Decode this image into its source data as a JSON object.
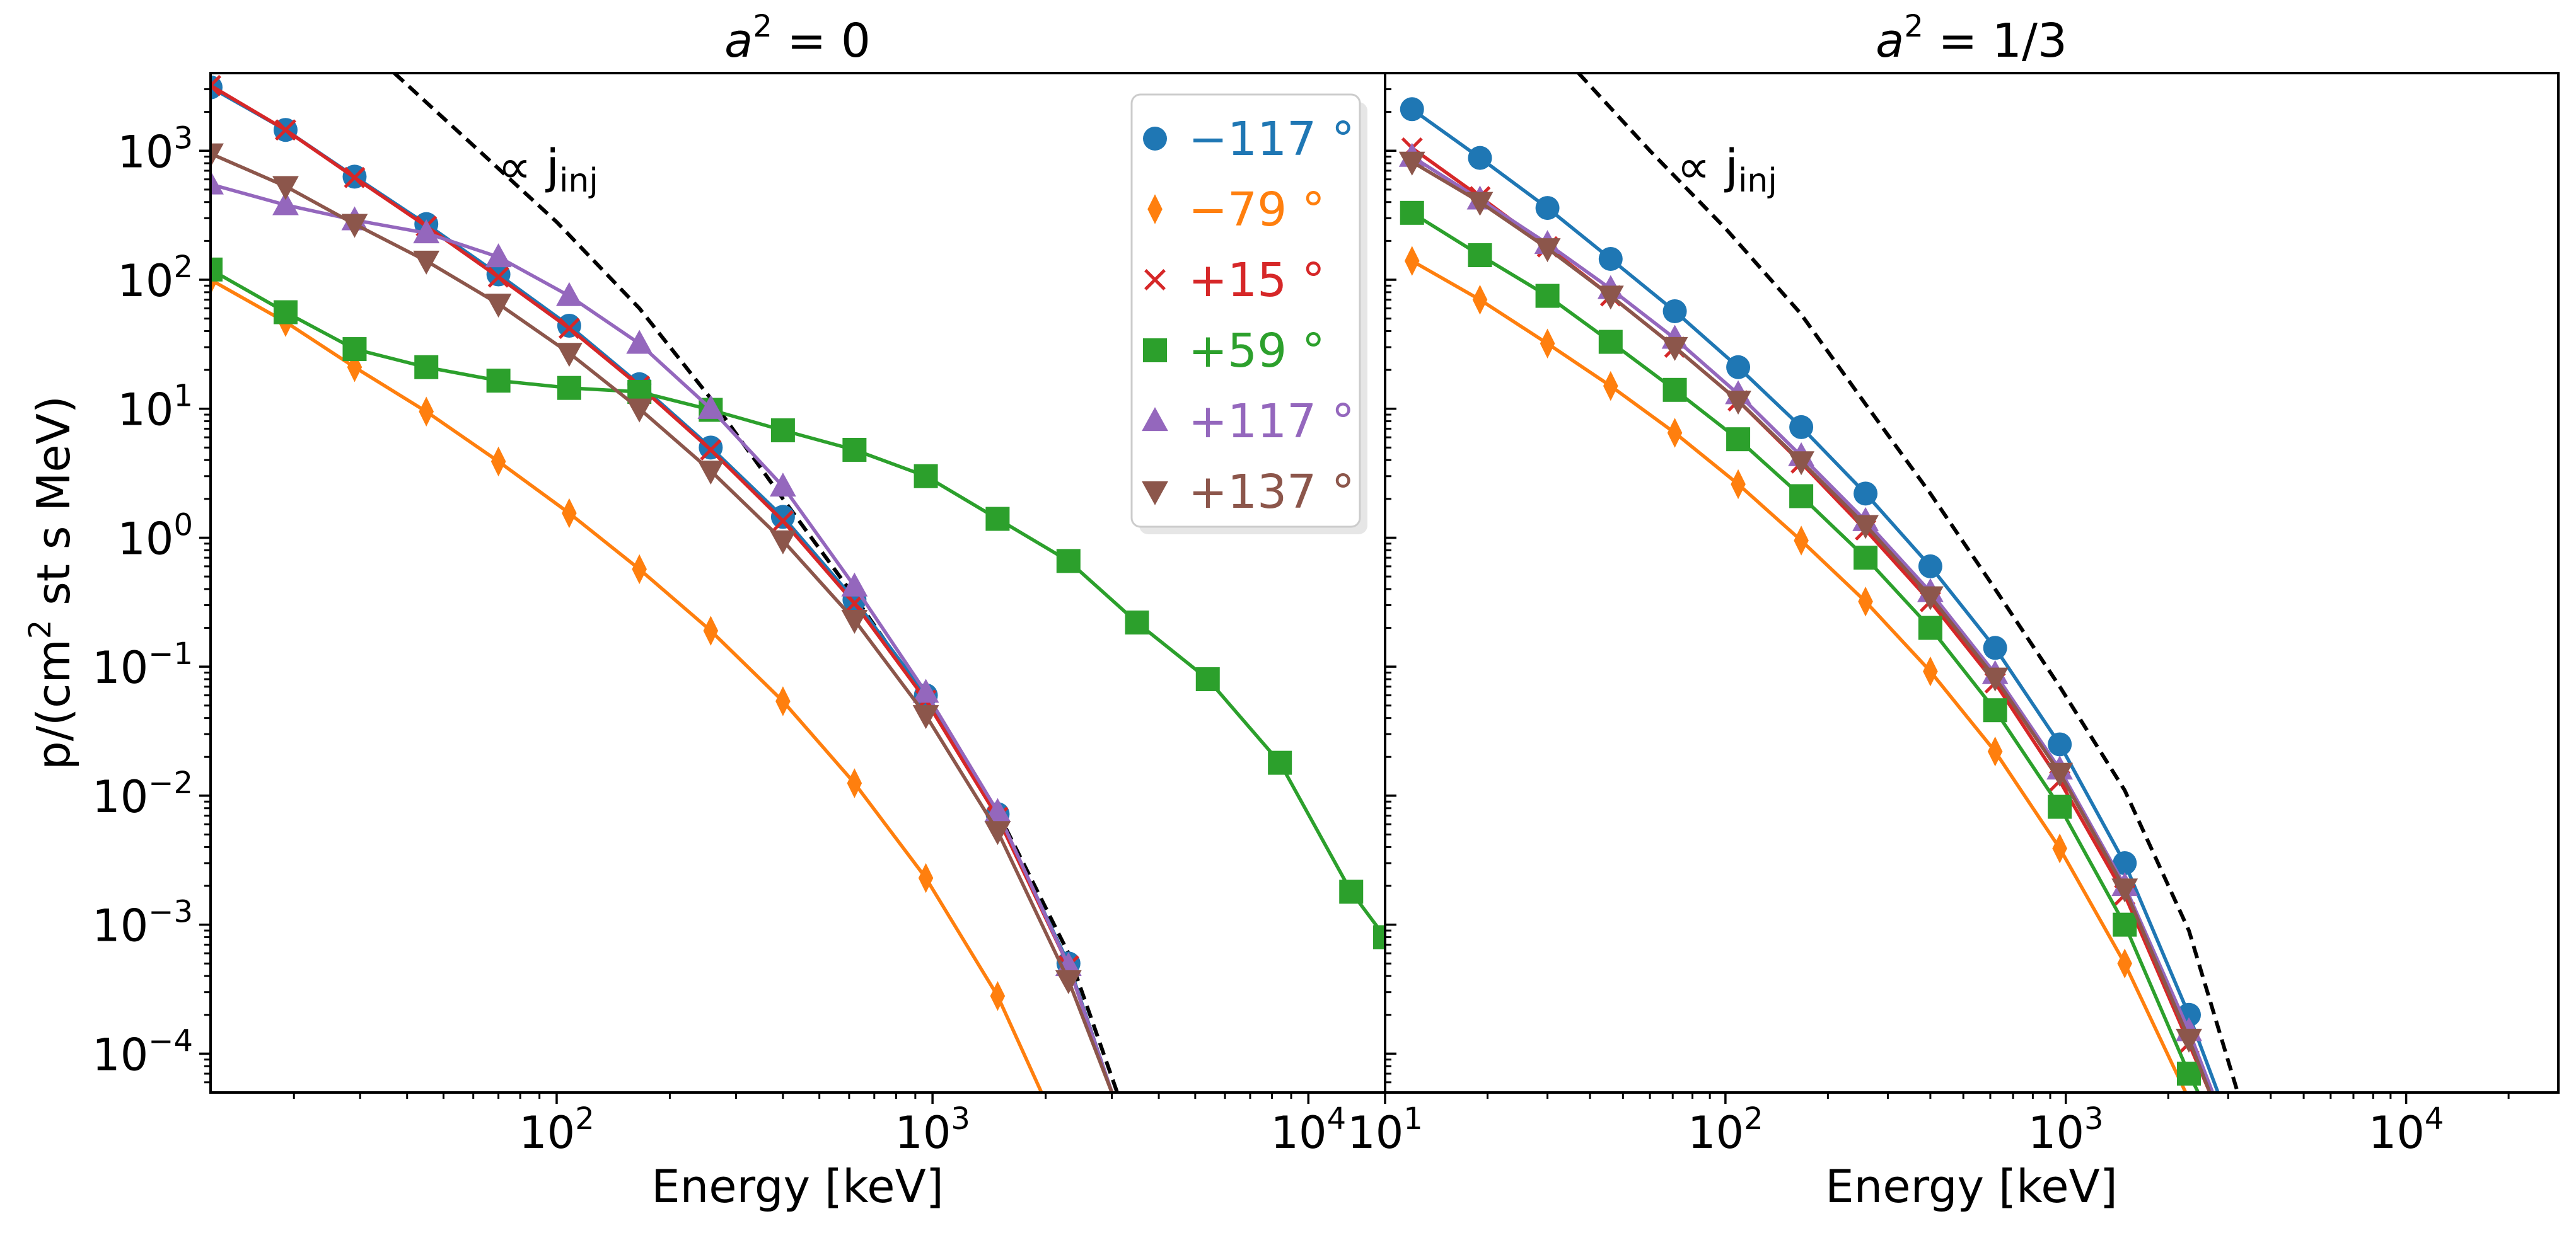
{
  "figure": {
    "ylabel_main": "p/(cm",
    "ylabel_sup": "2",
    "ylabel_tail": " st s MeV)",
    "xlabel": "Energy [keV]"
  },
  "panels": [
    {
      "title_base": "a",
      "title_sup": "2",
      "title_rest": " = 0",
      "annotation_main": "∝ j",
      "annotation_sub": "inj"
    },
    {
      "title_base": "a",
      "title_sup": "2",
      "title_rest": " = 1/3",
      "annotation_main": "∝ j",
      "annotation_sub": "inj"
    }
  ],
  "legend": [
    {
      "label": "−117 °",
      "color": "#1f77b4",
      "marker": "circle"
    },
    {
      "label": "−79 °",
      "color": "#ff7f0e",
      "marker": "thin-diamond"
    },
    {
      "label": "+15 °",
      "color": "#d62728",
      "marker": "x"
    },
    {
      "label": "+59 °",
      "color": "#2ca02c",
      "marker": "square"
    },
    {
      "label": "+117 °",
      "color": "#9467bd",
      "marker": "triangle-up"
    },
    {
      "label": "+137 °",
      "color": "#8c564b",
      "marker": "triangle-down"
    }
  ],
  "chart_data": [
    {
      "type": "line",
      "title": "a^2 = 0",
      "xlabel": "Energy [keV]",
      "ylabel": "p/(cm^2 st s MeV)",
      "xscale": "log",
      "yscale": "log",
      "xlim": [
        12,
        16000
      ],
      "ylim": [
        5e-05,
        4000
      ],
      "x_ticks": [
        {
          "value": 100,
          "base": "10",
          "exp": "2"
        },
        {
          "value": 1000,
          "base": "10",
          "exp": "3"
        },
        {
          "value": 10000,
          "base": "10",
          "exp": "4"
        }
      ],
      "y_ticks": [
        {
          "value": 0.0001,
          "base": "10",
          "exp": "−4"
        },
        {
          "value": 0.001,
          "base": "10",
          "exp": "−3"
        },
        {
          "value": 0.01,
          "base": "10",
          "exp": "−2"
        },
        {
          "value": 0.1,
          "base": "10",
          "exp": "−1"
        },
        {
          "value": 1,
          "base": "10",
          "exp": "0"
        },
        {
          "value": 10,
          "base": "10",
          "exp": "1"
        },
        {
          "value": 100,
          "base": "10",
          "exp": "2"
        },
        {
          "value": 1000,
          "base": "10",
          "exp": "3"
        }
      ],
      "x": [
        12,
        19,
        29,
        45,
        70,
        108,
        166,
        257,
        400,
        620,
        960,
        1490,
        2300,
        3500,
        5400,
        8400,
        13000
      ],
      "series": [
        {
          "name": "−117 °",
          "color": "#1f77b4",
          "marker": "circle",
          "x": [
            12,
            19,
            29,
            45,
            70,
            108,
            166,
            257,
            400,
            620,
            960,
            1490,
            2300,
            3000
          ],
          "values": [
            3100,
            1450,
            630,
            270,
            110,
            44,
            15.5,
            5.0,
            1.45,
            0.33,
            0.06,
            0.0072,
            0.0005,
            5e-05
          ]
        },
        {
          "name": "−79 °",
          "color": "#ff7f0e",
          "marker": "thin-diamond",
          "x": [
            12,
            19,
            29,
            45,
            70,
            108,
            166,
            257,
            400,
            620,
            960,
            1490,
            1950
          ],
          "values": [
            100,
            47,
            21,
            9.5,
            3.9,
            1.55,
            0.57,
            0.19,
            0.054,
            0.0125,
            0.0023,
            0.00028,
            5e-05
          ]
        },
        {
          "name": "+15 °",
          "color": "#d62728",
          "marker": "x",
          "x": [
            12,
            19,
            29,
            45,
            70,
            108,
            166,
            257,
            400,
            620,
            960,
            1490,
            2300,
            3000
          ],
          "values": [
            3200,
            1450,
            620,
            260,
            105,
            42,
            15,
            4.8,
            1.35,
            0.31,
            0.055,
            0.0068,
            0.00048,
            5e-05
          ]
        },
        {
          "name": "+59 °",
          "color": "#2ca02c",
          "marker": "square",
          "x": [
            12,
            19,
            29,
            45,
            70,
            108,
            166,
            257,
            400,
            620,
            960,
            1490,
            2300,
            3500,
            5400,
            8400,
            13000,
            16000
          ],
          "values": [
            120,
            56,
            29,
            21,
            16.5,
            14.5,
            13.5,
            9.8,
            6.8,
            4.8,
            3.0,
            1.4,
            0.66,
            0.22,
            0.08,
            0.018,
            0.0018,
            0.0008
          ]
        },
        {
          "name": "+117 °",
          "color": "#9467bd",
          "marker": "triangle-up",
          "x": [
            12,
            19,
            29,
            45,
            70,
            108,
            166,
            257,
            400,
            620,
            960,
            1490,
            2300,
            3000
          ],
          "values": [
            550,
            380,
            290,
            230,
            150,
            75,
            32,
            10,
            2.5,
            0.42,
            0.063,
            0.0075,
            0.00048,
            5e-05
          ]
        },
        {
          "name": "+137 °",
          "color": "#8c564b",
          "marker": "triangle-down",
          "x": [
            12,
            19,
            29,
            45,
            70,
            108,
            166,
            257,
            400,
            620,
            960,
            1490,
            2300,
            3000
          ],
          "values": [
            950,
            530,
            270,
            140,
            65,
            27,
            10,
            3.3,
            0.95,
            0.23,
            0.042,
            0.0053,
            0.00037,
            5e-05
          ]
        }
      ],
      "reference": {
        "name": "∝ j_inj",
        "style": "dashed",
        "color": "#000000",
        "x": [
          37,
          60,
          100,
          166,
          257,
          400,
          620,
          960,
          1490,
          2300,
          3100
        ],
        "values": [
          4000,
          1100,
          280,
          60,
          12,
          2.0,
          0.35,
          0.055,
          0.0075,
          0.0006,
          5e-05
        ]
      }
    },
    {
      "type": "line",
      "title": "a^2 = 1/3",
      "xlabel": "Energy [keV]",
      "ylabel": "p/(cm^2 st s MeV)",
      "xscale": "log",
      "yscale": "log",
      "xlim": [
        10,
        28000
      ],
      "ylim": [
        5e-05,
        4000
      ],
      "x_ticks": [
        {
          "value": 10,
          "base": "10",
          "exp": "1"
        },
        {
          "value": 100,
          "base": "10",
          "exp": "2"
        },
        {
          "value": 1000,
          "base": "10",
          "exp": "3"
        },
        {
          "value": 10000,
          "base": "10",
          "exp": "4"
        }
      ],
      "x": [
        12,
        19,
        30,
        46,
        71,
        109,
        167,
        258,
        400,
        620,
        960,
        1490,
        2300
      ],
      "series": [
        {
          "name": "−117 °",
          "color": "#1f77b4",
          "marker": "circle",
          "x": [
            12,
            19,
            30,
            46,
            71,
            109,
            167,
            258,
            400,
            620,
            960,
            1490,
            2300,
            2800
          ],
          "values": [
            2100,
            880,
            360,
            145,
            57,
            21,
            7.2,
            2.2,
            0.6,
            0.14,
            0.025,
            0.003,
            0.0002,
            5e-05
          ]
        },
        {
          "name": "−79 °",
          "color": "#ff7f0e",
          "marker": "thin-diamond",
          "x": [
            12,
            19,
            30,
            46,
            71,
            109,
            167,
            258,
            400,
            620,
            960,
            1490,
            2250
          ],
          "values": [
            140,
            70,
            32,
            15,
            6.5,
            2.6,
            0.95,
            0.32,
            0.092,
            0.022,
            0.0039,
            0.0005,
            5e-05
          ]
        },
        {
          "name": "+15 °",
          "color": "#d62728",
          "marker": "x",
          "x": [
            12,
            19,
            30,
            46,
            71,
            109,
            167,
            258,
            400,
            620,
            960,
            1490,
            2300,
            2650
          ],
          "values": [
            1050,
            440,
            180,
            75,
            30,
            11.5,
            3.8,
            1.15,
            0.32,
            0.075,
            0.013,
            0.0017,
            0.00012,
            5e-05
          ]
        },
        {
          "name": "+59 °",
          "color": "#2ca02c",
          "marker": "square",
          "x": [
            12,
            19,
            30,
            46,
            71,
            109,
            167,
            258,
            400,
            620,
            960,
            1490,
            2300,
            2450
          ],
          "values": [
            330,
            155,
            75,
            33,
            14,
            5.8,
            2.1,
            0.7,
            0.2,
            0.046,
            0.0082,
            0.001,
            7e-05,
            5e-05
          ]
        },
        {
          "name": "+117 °",
          "color": "#9467bd",
          "marker": "triangle-up",
          "x": [
            12,
            19,
            30,
            46,
            71,
            109,
            167,
            258,
            400,
            620,
            960,
            1490,
            2300,
            2700
          ],
          "values": [
            900,
            420,
            190,
            85,
            35,
            13,
            4.3,
            1.35,
            0.38,
            0.088,
            0.016,
            0.002,
            0.00015,
            5e-05
          ]
        },
        {
          "name": "+137 °",
          "color": "#8c564b",
          "marker": "triangle-down",
          "x": [
            12,
            19,
            30,
            46,
            71,
            109,
            167,
            258,
            400,
            620,
            960,
            1490,
            2300,
            2650
          ],
          "values": [
            820,
            400,
            175,
            75,
            30,
            11.5,
            3.9,
            1.25,
            0.35,
            0.082,
            0.015,
            0.0019,
            0.00013,
            5e-05
          ]
        }
      ],
      "reference": {
        "name": "∝ j_inj",
        "style": "dashed",
        "color": "#000000",
        "x": [
          37,
          60,
          100,
          166,
          257,
          400,
          620,
          960,
          1490,
          2300,
          3200
        ],
        "values": [
          4000,
          1000,
          250,
          55,
          11,
          2.2,
          0.4,
          0.07,
          0.011,
          0.0009,
          5e-05
        ]
      }
    }
  ]
}
